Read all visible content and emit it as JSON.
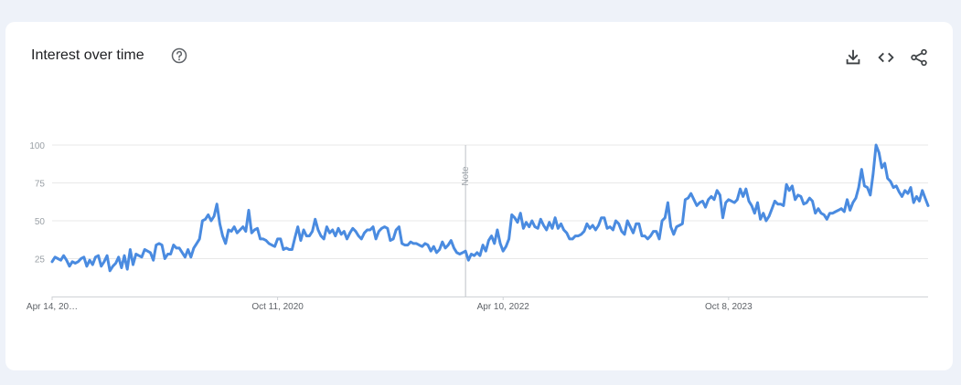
{
  "card": {
    "title": "Interest over time",
    "help_icon": "help-circle-icon",
    "actions": [
      {
        "name": "download-icon"
      },
      {
        "name": "embed-code-icon"
      },
      {
        "name": "share-icon"
      }
    ]
  },
  "chart_data": {
    "type": "line",
    "title": "",
    "xlabel": "",
    "ylabel": "",
    "ylim": [
      0,
      100
    ],
    "y_ticks": [
      "100",
      "75",
      "50",
      "25"
    ],
    "y_tick_values": [
      100,
      75,
      50,
      25
    ],
    "x_ticks": [
      {
        "label": "Apr 14, 20…",
        "date": "2019-04-14"
      },
      {
        "label": "Oct 11, 2020",
        "date": "2020-10-11"
      },
      {
        "label": "Apr 10, 2022",
        "date": "2022-04-10"
      },
      {
        "label": "Oct 8, 2023",
        "date": "2023-10-08"
      }
    ],
    "x_start": "2019-04-14",
    "x_interval": "weekly",
    "annotation": {
      "label": "Note",
      "date": "2022-01-09"
    },
    "grid": true,
    "legend": "none",
    "line_color": "#4a8be0",
    "values": [
      23,
      26,
      25,
      24,
      27,
      24,
      20,
      23,
      22,
      23,
      25,
      26,
      20,
      24,
      21,
      26,
      27,
      20,
      23,
      27,
      17,
      20,
      22,
      26,
      19,
      27,
      18,
      31,
      21,
      28,
      27,
      26,
      31,
      30,
      29,
      24,
      34,
      35,
      34,
      25,
      28,
      28,
      34,
      32,
      32,
      29,
      26,
      31,
      26,
      32,
      35,
      38,
      50,
      51,
      54,
      50,
      53,
      61,
      48,
      40,
      35,
      44,
      43,
      46,
      42,
      44,
      46,
      43,
      57,
      42,
      44,
      45,
      38,
      38,
      37,
      35,
      34,
      33,
      38,
      38,
      31,
      32,
      31,
      31,
      39,
      46,
      37,
      44,
      40,
      40,
      43,
      51,
      44,
      40,
      38,
      46,
      42,
      44,
      40,
      45,
      41,
      43,
      38,
      42,
      45,
      43,
      40,
      38,
      42,
      44,
      44,
      46,
      38,
      43,
      45,
      46,
      45,
      37,
      38,
      44,
      46,
      35,
      34,
      34,
      36,
      35,
      35,
      34,
      33,
      35,
      34,
      30,
      33,
      29,
      31,
      36,
      32,
      34,
      37,
      32,
      29,
      28,
      29,
      30,
      24,
      28,
      27,
      29,
      27,
      34,
      30,
      37,
      40,
      35,
      44,
      35,
      30,
      33,
      38,
      54,
      52,
      49,
      55,
      45,
      49,
      46,
      50,
      46,
      45,
      51,
      47,
      44,
      49,
      45,
      52,
      45,
      48,
      44,
      42,
      38,
      38,
      40,
      40,
      41,
      43,
      48,
      45,
      47,
      44,
      47,
      52,
      52,
      45,
      46,
      44,
      50,
      48,
      43,
      41,
      50,
      46,
      42,
      48,
      48,
      40,
      40,
      38,
      40,
      43,
      43,
      38,
      50,
      52,
      62,
      46,
      41,
      46,
      47,
      48,
      64,
      65,
      68,
      64,
      60,
      62,
      63,
      59,
      64,
      66,
      64,
      70,
      67,
      52,
      62,
      64,
      63,
      62,
      64,
      71,
      66,
      71,
      63,
      60,
      55,
      62,
      51,
      55,
      50,
      53,
      58,
      63,
      61,
      61,
      60,
      74,
      70,
      73,
      64,
      67,
      66,
      61,
      62,
      65,
      63,
      55,
      58,
      55,
      54,
      51,
      55,
      55,
      56,
      57,
      58,
      56,
      64,
      57,
      62,
      65,
      72,
      84,
      73,
      72,
      67,
      81,
      100,
      95,
      85,
      88,
      78,
      76,
      72,
      73,
      69,
      66,
      70,
      68,
      72,
      62,
      66,
      63,
      70,
      65,
      60
    ]
  }
}
